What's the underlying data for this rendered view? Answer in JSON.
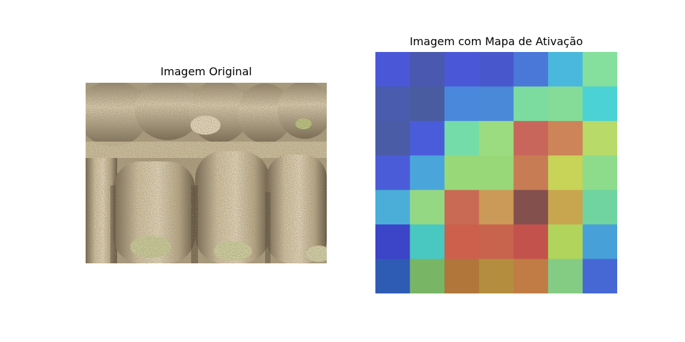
{
  "figure": {
    "left_title": "Imagem Original",
    "right_title": "Imagem com Mapa de Ativação"
  },
  "original_image": {
    "subject": "rolled pastries dusted with cinnamon in a creamy sauce",
    "palette": {
      "cream": "#d8d2b4",
      "shadow": "#5d5646",
      "cinnamon": "#7a5a3c",
      "green": "#a8bf6a"
    }
  },
  "activation_map": {
    "rows": 7,
    "cols": 7,
    "cells": [
      [
        "#4a58d8",
        "#4a58b0",
        "#4a58d8",
        "#4858cc",
        "#4a78d8",
        "#4ab8dc",
        "#84e09c"
      ],
      [
        "#4a5cae",
        "#4a5ca0",
        "#4a88dc",
        "#4a88d8",
        "#7cdca0",
        "#84dc98",
        "#4ad2d4"
      ],
      [
        "#4a5ca6",
        "#4a5cda",
        "#74dca8",
        "#9cdc80",
        "#c8665c",
        "#cc8458",
        "#b8da68"
      ],
      [
        "#4a5cd8",
        "#4aa6da",
        "#98d878",
        "#98d878",
        "#c87c54",
        "#c8d458",
        "#8cdc8c"
      ],
      [
        "#4aaed8",
        "#94d884",
        "#c86a54",
        "#cc9a58",
        "#84504e",
        "#c8a650",
        "#70d4a0"
      ],
      [
        "#3c44c8",
        "#48c8c0",
        "#cc604c",
        "#c8644e",
        "#c4524c",
        "#b0d45c",
        "#48a0d8"
      ],
      [
        "#2e5cb4",
        "#78b666",
        "#b0763a",
        "#b48e3e",
        "#c07c44",
        "#84cc84",
        "#4668d4"
      ]
    ]
  }
}
